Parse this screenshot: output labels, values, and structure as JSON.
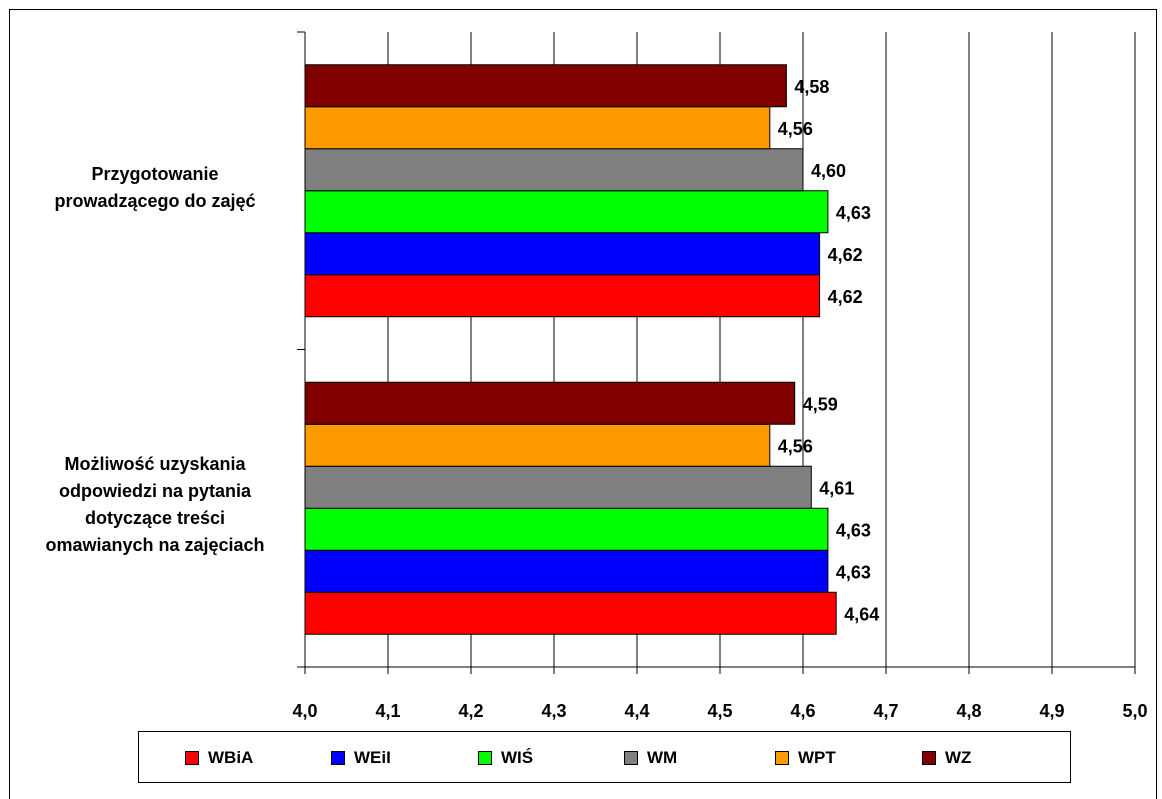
{
  "chart_data": {
    "type": "bar",
    "orientation": "horizontal",
    "categories": [
      "Przygotowanie prowadzącego do zajęć",
      "Możliwość uzyskania odpowiedzi na pytania dotyczące treści omawianych na zajęciach"
    ],
    "category_lines": [
      [
        "Przygotowanie",
        "prowadzącego do zajęć"
      ],
      [
        "Możliwość uzyskania",
        "odpowiedzi na pytania",
        "dotyczące treści",
        "omawianych na zajęciach"
      ]
    ],
    "series": [
      {
        "name": "WBiA",
        "color": "#ff0000",
        "values": [
          4.62,
          4.64
        ],
        "labels": [
          "4,62",
          "4,64"
        ]
      },
      {
        "name": "WEiI",
        "color": "#0000ff",
        "values": [
          4.62,
          4.63
        ],
        "labels": [
          "4,62",
          "4,63"
        ]
      },
      {
        "name": "WIŚ",
        "color": "#00ff00",
        "values": [
          4.63,
          4.63
        ],
        "labels": [
          "4,63",
          "4,63"
        ]
      },
      {
        "name": "WM",
        "color": "#808080",
        "values": [
          4.6,
          4.61
        ],
        "labels": [
          "4,60",
          "4,61"
        ]
      },
      {
        "name": "WPT",
        "color": "#ff9900",
        "values": [
          4.56,
          4.56
        ],
        "labels": [
          "4,56",
          "4,56"
        ]
      },
      {
        "name": "WZ",
        "color": "#800000",
        "values": [
          4.58,
          4.59
        ],
        "labels": [
          "4,58",
          "4,59"
        ]
      }
    ],
    "xlim": [
      4.0,
      5.0
    ],
    "x_ticks": [
      "4,0",
      "4,1",
      "4,2",
      "4,3",
      "4,4",
      "4,5",
      "4,6",
      "4,7",
      "4,8",
      "4,9",
      "5,0"
    ],
    "grid": true,
    "legend_position": "bottom",
    "title": "",
    "xlabel": "",
    "ylabel": ""
  }
}
